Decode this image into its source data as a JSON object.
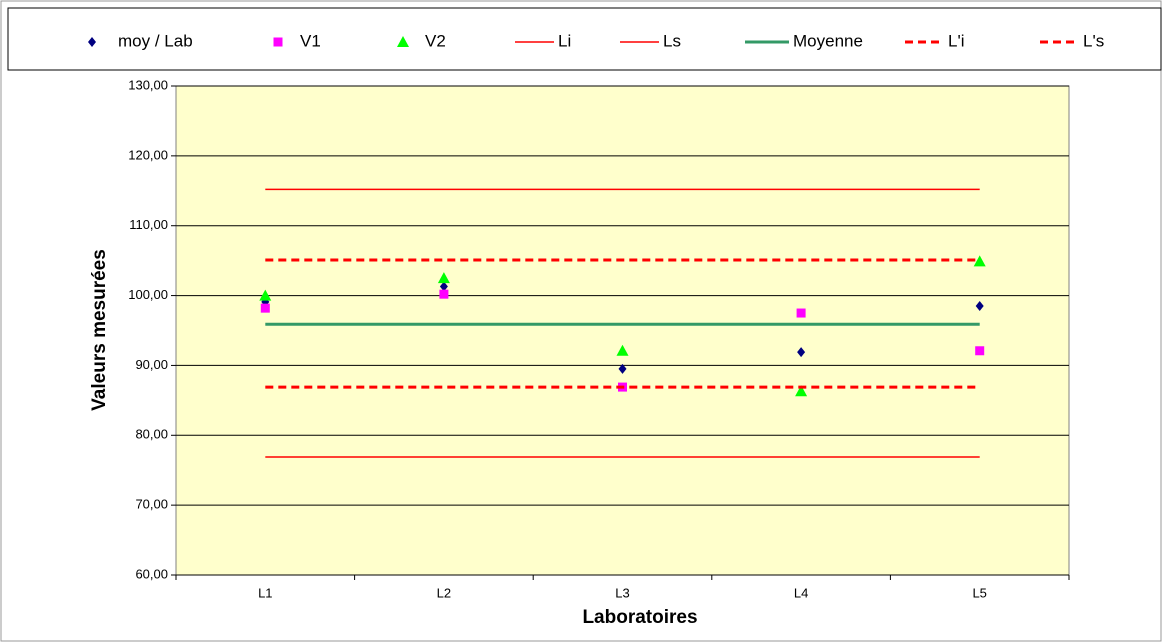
{
  "chart_data": {
    "type": "scatter-lines",
    "categories": [
      "L1",
      "L2",
      "L3",
      "L4",
      "L5"
    ],
    "x_label": "Laboratoires",
    "y_label": "Valeurs mesurées",
    "ylim": [
      60,
      130
    ],
    "yticks": [
      {
        "value": 60,
        "label": "60,00"
      },
      {
        "value": 70,
        "label": "70,00"
      },
      {
        "value": 80,
        "label": "80,00"
      },
      {
        "value": 90,
        "label": "90,00"
      },
      {
        "value": 100,
        "label": "100,00"
      },
      {
        "value": 110,
        "label": "110,00"
      },
      {
        "value": 120,
        "label": "120,00"
      },
      {
        "value": 130,
        "label": "130,00"
      }
    ],
    "grid": true,
    "plot_background": "#ffffcc",
    "legend": "top",
    "series": [
      {
        "name": "moy / Lab",
        "color": "#000080",
        "style": "diamond",
        "values": [
          99.1,
          101.3,
          89.5,
          91.9,
          98.5
        ]
      },
      {
        "name": "V1",
        "color": "#ff00ff",
        "style": "square",
        "values": [
          98.2,
          100.2,
          86.9,
          97.5,
          92.1
        ]
      },
      {
        "name": "V2",
        "color": "#00ff00",
        "style": "triangle",
        "values": [
          100.0,
          102.5,
          92.1,
          86.3,
          104.9
        ]
      },
      {
        "name": "Li",
        "color": "#ff0000",
        "style": "line",
        "values": [
          76.9,
          76.9,
          76.9,
          76.9,
          76.9
        ]
      },
      {
        "name": "Ls",
        "color": "#ff0000",
        "style": "line",
        "values": [
          115.2,
          115.2,
          115.2,
          115.2,
          115.2
        ]
      },
      {
        "name": "Moyenne",
        "color": "#339966",
        "style": "thick-line",
        "values": [
          95.9,
          95.9,
          95.9,
          95.9,
          95.9
        ]
      },
      {
        "name": "L'i",
        "color": "#ff0000",
        "style": "dashed-line",
        "values": [
          86.9,
          86.9,
          86.9,
          86.9,
          86.9
        ]
      },
      {
        "name": "L's",
        "color": "#ff0000",
        "style": "dashed-line",
        "values": [
          105.1,
          105.1,
          105.1,
          105.1,
          105.1
        ]
      }
    ]
  }
}
